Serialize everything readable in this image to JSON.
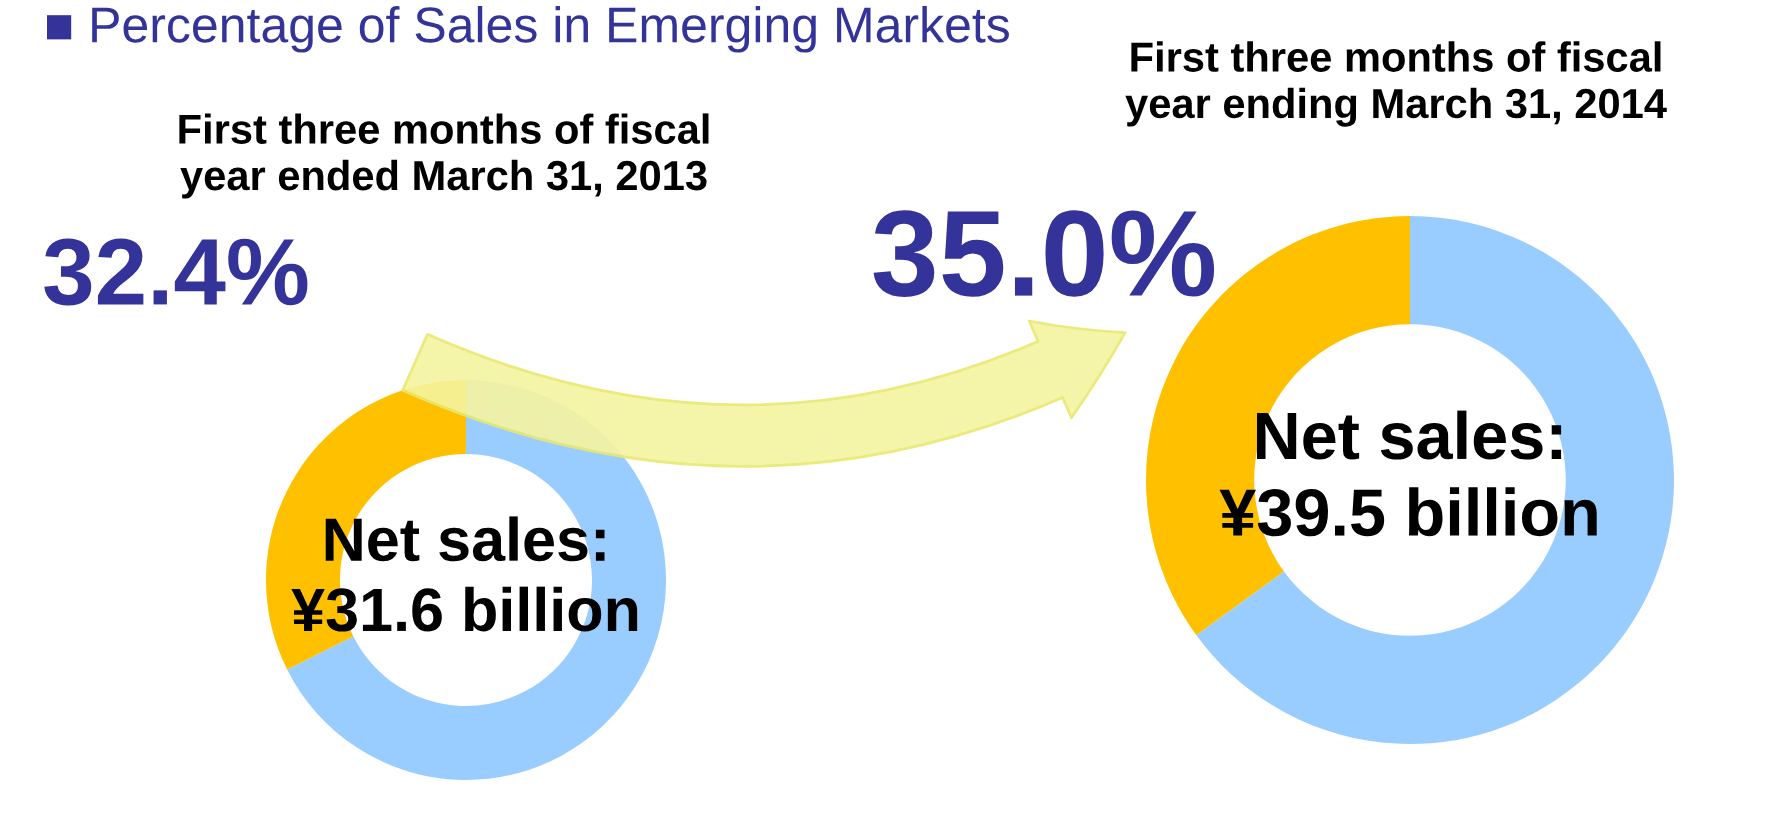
{
  "chart_data": [
    {
      "type": "donut",
      "title": "■ Percentage of Sales in Emerging Markets",
      "subtitle": "First three months of fiscal\nyear ended March 31, 2013",
      "categories": [
        null,
        null
      ],
      "values": [
        32.4,
        67.6
      ],
      "colors": [
        "#ffc000",
        "#99ccff"
      ],
      "value_labels": [
        "32.4%",
        null
      ],
      "annotations": [
        "Net sales:\n¥31.6 billion"
      ]
    },
    {
      "type": "donut",
      "subtitle": "First three months of fiscal\nyear ending March 31, 2014",
      "categories": [
        null,
        null
      ],
      "values": [
        35.0,
        65.0
      ],
      "colors": [
        "#ffc000",
        "#99ccff"
      ],
      "value_labels": [
        "35.0%",
        null
      ],
      "annotations": [
        "Net sales:\n¥39.5 billion"
      ]
    }
  ]
}
